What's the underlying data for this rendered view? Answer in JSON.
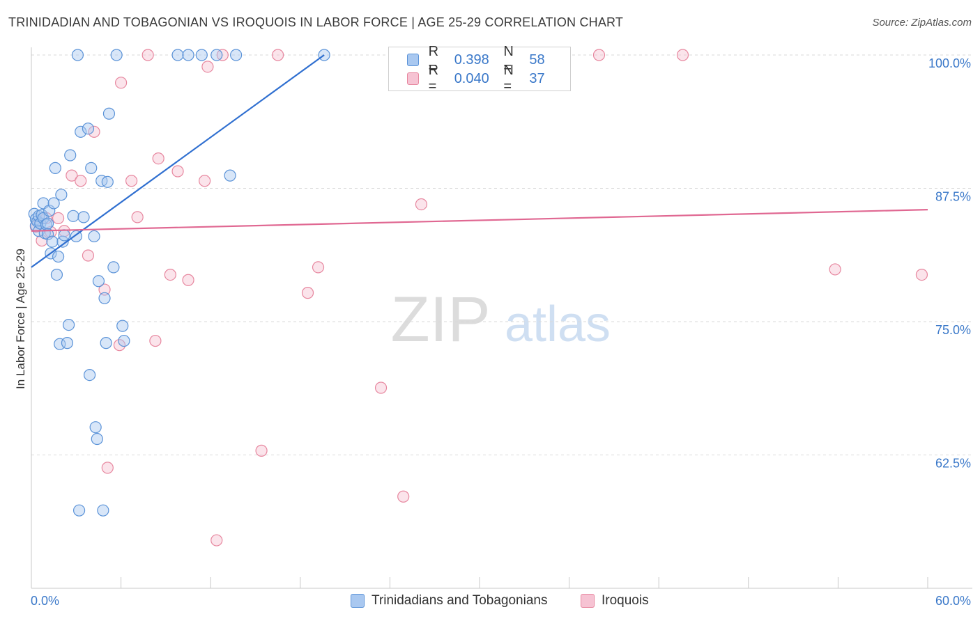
{
  "header": {
    "title": "TRINIDADIAN AND TOBAGONIAN VS IROQUOIS IN LABOR FORCE | AGE 25-29 CORRELATION CHART",
    "source": "Source: ZipAtlas.com"
  },
  "watermark": {
    "zip": "ZIP",
    "atlas": "atlas"
  },
  "colors": {
    "blue_fill": "#a9c8f0",
    "blue_stroke": "#5b93d8",
    "blue_line": "#2f6fd0",
    "pink_fill": "#f6c3d3",
    "pink_stroke": "#e7879f",
    "pink_line": "#e06892",
    "axis_text": "#3a78c9"
  },
  "legend": {
    "rows": [
      {
        "r_label": "R =",
        "r_value": "0.398",
        "n_label": "N =",
        "n_value": "58"
      },
      {
        "r_label": "R =",
        "r_value": "0.040",
        "n_label": "N =",
        "n_value": "37"
      }
    ]
  },
  "bottom_legend": {
    "series1": "Trinidadians and Tobagonians",
    "series2": "Iroquois"
  },
  "chart_data": {
    "type": "scatter",
    "title": "TRINIDADIAN AND TOBAGONIAN VS IROQUOIS IN LABOR FORCE | AGE 25-29 CORRELATION CHART",
    "xlabel": "",
    "ylabel": "In Labor Force | Age 25-29",
    "xlim": [
      0,
      60
    ],
    "ylim": [
      50,
      102.5
    ],
    "x_tick_labels": [
      "0.0%",
      "60.0%"
    ],
    "y_ticks": [
      62.5,
      75.0,
      87.5,
      100.0
    ],
    "y_tick_labels": [
      "62.5%",
      "75.0%",
      "87.5%",
      "100.0%"
    ],
    "series": [
      {
        "name": "Trinidadians and Tobagonians",
        "r": 0.398,
        "n": 58,
        "trend": {
          "x": [
            0.0,
            19.6
          ],
          "y": [
            80.1,
            100.0
          ]
        },
        "points": [
          [
            0.2,
            85.1
          ],
          [
            0.3,
            84.6
          ],
          [
            0.3,
            84.0
          ],
          [
            0.4,
            84.4
          ],
          [
            0.5,
            84.9
          ],
          [
            0.5,
            83.5
          ],
          [
            0.6,
            84.2
          ],
          [
            0.7,
            85.0
          ],
          [
            0.8,
            86.1
          ],
          [
            0.8,
            84.7
          ],
          [
            0.9,
            83.3
          ],
          [
            1.0,
            84.1
          ],
          [
            1.1,
            84.2
          ],
          [
            1.2,
            85.4
          ],
          [
            1.1,
            83.2
          ],
          [
            1.4,
            82.5
          ],
          [
            1.5,
            86.1
          ],
          [
            1.3,
            81.4
          ],
          [
            1.6,
            89.4
          ],
          [
            1.7,
            79.4
          ],
          [
            1.8,
            81.1
          ],
          [
            1.9,
            72.9
          ],
          [
            2.0,
            86.9
          ],
          [
            2.1,
            82.5
          ],
          [
            2.2,
            83.1
          ],
          [
            2.5,
            74.7
          ],
          [
            2.4,
            73.0
          ],
          [
            2.6,
            90.6
          ],
          [
            2.8,
            84.9
          ],
          [
            3.0,
            83.0
          ],
          [
            3.3,
            92.8
          ],
          [
            3.5,
            84.8
          ],
          [
            3.8,
            93.1
          ],
          [
            3.9,
            70.0
          ],
          [
            4.0,
            89.4
          ],
          [
            4.2,
            83.0
          ],
          [
            4.3,
            65.1
          ],
          [
            4.4,
            64.0
          ],
          [
            4.5,
            78.8
          ],
          [
            4.7,
            88.2
          ],
          [
            4.9,
            77.2
          ],
          [
            5.0,
            73.0
          ],
          [
            5.1,
            88.1
          ],
          [
            5.2,
            94.5
          ],
          [
            5.5,
            80.1
          ],
          [
            6.1,
            74.6
          ],
          [
            6.2,
            73.2
          ],
          [
            3.2,
            57.3
          ],
          [
            4.8,
            57.3
          ],
          [
            3.1,
            100.0
          ],
          [
            5.7,
            100.0
          ],
          [
            9.8,
            100.0
          ],
          [
            10.5,
            100.0
          ],
          [
            11.4,
            100.0
          ],
          [
            12.4,
            100.0
          ],
          [
            13.7,
            100.0
          ],
          [
            19.6,
            100.0
          ],
          [
            13.3,
            88.7
          ]
        ]
      },
      {
        "name": "Iroquois",
        "r": 0.04,
        "n": 37,
        "trend": {
          "x": [
            0.0,
            60.0
          ],
          "y": [
            83.5,
            85.5
          ]
        },
        "points": [
          [
            0.3,
            83.9
          ],
          [
            0.7,
            82.6
          ],
          [
            1.0,
            84.7
          ],
          [
            1.3,
            83.4
          ],
          [
            1.8,
            84.7
          ],
          [
            2.2,
            83.5
          ],
          [
            2.7,
            88.7
          ],
          [
            3.3,
            88.2
          ],
          [
            3.8,
            81.2
          ],
          [
            4.2,
            92.8
          ],
          [
            4.9,
            78.0
          ],
          [
            5.1,
            61.3
          ],
          [
            5.9,
            72.8
          ],
          [
            6.0,
            97.4
          ],
          [
            6.7,
            88.2
          ],
          [
            7.1,
            84.8
          ],
          [
            7.8,
            100.0
          ],
          [
            8.3,
            73.2
          ],
          [
            8.5,
            90.3
          ],
          [
            9.3,
            79.4
          ],
          [
            9.8,
            89.1
          ],
          [
            10.5,
            78.9
          ],
          [
            11.6,
            88.2
          ],
          [
            11.8,
            98.9
          ],
          [
            12.4,
            54.5
          ],
          [
            12.8,
            100.0
          ],
          [
            15.4,
            62.9
          ],
          [
            16.5,
            100.0
          ],
          [
            18.5,
            77.7
          ],
          [
            19.2,
            80.1
          ],
          [
            23.4,
            68.8
          ],
          [
            24.9,
            58.6
          ],
          [
            26.1,
            86.0
          ],
          [
            38.0,
            100.0
          ],
          [
            43.6,
            100.0
          ],
          [
            53.8,
            79.9
          ],
          [
            59.6,
            79.4
          ]
        ]
      }
    ]
  }
}
